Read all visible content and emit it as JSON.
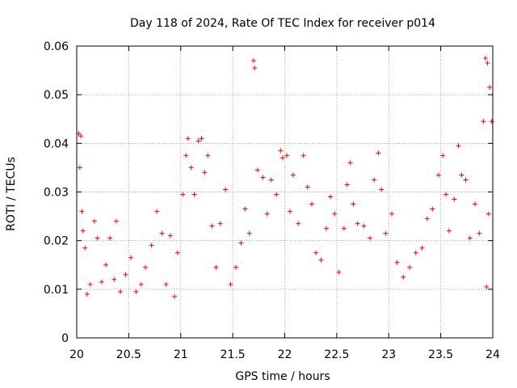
{
  "chart_data": {
    "type": "scatter",
    "title": "Day 118 of 2024, Rate Of TEC Index for receiver p014",
    "xlabel": "GPS time / hours",
    "ylabel": "ROTI / TECUs",
    "xlim": [
      20,
      24
    ],
    "ylim": [
      0,
      0.06
    ],
    "x_ticks": [
      20,
      20.5,
      21,
      21.5,
      22,
      22.5,
      23,
      23.5,
      24
    ],
    "x_tick_labels": [
      "20",
      "20.5",
      "21",
      "21.5",
      "22",
      "22.5",
      "23",
      "23.5",
      "24"
    ],
    "y_ticks": [
      0,
      0.01,
      0.02,
      0.03,
      0.04,
      0.05,
      0.06
    ],
    "y_tick_labels": [
      "0",
      "0.01",
      "0.02",
      "0.03",
      "0.04",
      "0.05",
      "0.06"
    ],
    "grid": true,
    "marker": "+",
    "color": "#ff0000",
    "series": [
      {
        "name": "ROTI",
        "points": [
          [
            20.02,
            0.042
          ],
          [
            20.04,
            0.0415
          ],
          [
            20.03,
            0.035
          ],
          [
            20.05,
            0.026
          ],
          [
            20.06,
            0.022
          ],
          [
            20.08,
            0.0185
          ],
          [
            20.1,
            0.009
          ],
          [
            20.13,
            0.011
          ],
          [
            20.17,
            0.024
          ],
          [
            20.2,
            0.0205
          ],
          [
            20.24,
            0.0115
          ],
          [
            20.28,
            0.015
          ],
          [
            20.32,
            0.0205
          ],
          [
            20.36,
            0.012
          ],
          [
            20.38,
            0.024
          ],
          [
            20.42,
            0.0095
          ],
          [
            20.47,
            0.013
          ],
          [
            20.52,
            0.0165
          ],
          [
            20.57,
            0.0095
          ],
          [
            20.62,
            0.011
          ],
          [
            20.66,
            0.0145
          ],
          [
            20.72,
            0.019
          ],
          [
            20.77,
            0.026
          ],
          [
            20.82,
            0.0215
          ],
          [
            20.86,
            0.011
          ],
          [
            20.9,
            0.021
          ],
          [
            20.94,
            0.0085
          ],
          [
            20.97,
            0.0175
          ],
          [
            21.02,
            0.0295
          ],
          [
            21.05,
            0.0375
          ],
          [
            21.07,
            0.041
          ],
          [
            21.1,
            0.035
          ],
          [
            21.13,
            0.0295
          ],
          [
            21.17,
            0.0405
          ],
          [
            21.2,
            0.041
          ],
          [
            21.23,
            0.034
          ],
          [
            21.26,
            0.0375
          ],
          [
            21.3,
            0.023
          ],
          [
            21.34,
            0.0145
          ],
          [
            21.38,
            0.0235
          ],
          [
            21.43,
            0.0305
          ],
          [
            21.48,
            0.011
          ],
          [
            21.53,
            0.0145
          ],
          [
            21.58,
            0.0195
          ],
          [
            21.62,
            0.0265
          ],
          [
            21.66,
            0.0215
          ],
          [
            21.7,
            0.057
          ],
          [
            21.71,
            0.0555
          ],
          [
            21.74,
            0.0345
          ],
          [
            21.79,
            0.033
          ],
          [
            21.83,
            0.0255
          ],
          [
            21.87,
            0.0325
          ],
          [
            21.92,
            0.0295
          ],
          [
            21.96,
            0.0385
          ],
          [
            21.98,
            0.037
          ],
          [
            22.02,
            0.0375
          ],
          [
            22.05,
            0.026
          ],
          [
            22.08,
            0.0335
          ],
          [
            22.13,
            0.0235
          ],
          [
            22.18,
            0.0375
          ],
          [
            22.22,
            0.031
          ],
          [
            22.26,
            0.0275
          ],
          [
            22.3,
            0.0175
          ],
          [
            22.35,
            0.016
          ],
          [
            22.4,
            0.0225
          ],
          [
            22.44,
            0.029
          ],
          [
            22.48,
            0.0255
          ],
          [
            22.52,
            0.0135
          ],
          [
            22.57,
            0.0225
          ],
          [
            22.6,
            0.0315
          ],
          [
            22.63,
            0.036
          ],
          [
            22.66,
            0.0275
          ],
          [
            22.7,
            0.0235
          ],
          [
            22.76,
            0.023
          ],
          [
            22.82,
            0.0205
          ],
          [
            22.86,
            0.0325
          ],
          [
            22.9,
            0.038
          ],
          [
            22.93,
            0.0305
          ],
          [
            22.97,
            0.0215
          ],
          [
            23.03,
            0.0255
          ],
          [
            23.08,
            0.0155
          ],
          [
            23.14,
            0.0125
          ],
          [
            23.2,
            0.0145
          ],
          [
            23.26,
            0.0175
          ],
          [
            23.32,
            0.0185
          ],
          [
            23.37,
            0.0245
          ],
          [
            23.42,
            0.0265
          ],
          [
            23.48,
            0.0335
          ],
          [
            23.52,
            0.0375
          ],
          [
            23.55,
            0.0295
          ],
          [
            23.58,
            0.022
          ],
          [
            23.63,
            0.0285
          ],
          [
            23.67,
            0.0395
          ],
          [
            23.7,
            0.0335
          ],
          [
            23.74,
            0.0325
          ],
          [
            23.78,
            0.0205
          ],
          [
            23.83,
            0.0275
          ],
          [
            23.87,
            0.0215
          ],
          [
            23.91,
            0.0445
          ],
          [
            23.93,
            0.0575
          ],
          [
            23.95,
            0.0565
          ],
          [
            23.97,
            0.0515
          ],
          [
            23.99,
            0.0445
          ],
          [
            23.96,
            0.0255
          ],
          [
            23.94,
            0.0105
          ]
        ]
      }
    ]
  }
}
